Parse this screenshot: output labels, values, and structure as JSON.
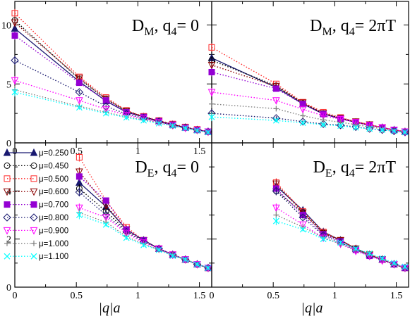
{
  "xlabel": "|q|a",
  "legend": [
    {
      "label": "μ=0.250",
      "color": "#191970",
      "marker": "triangle-up",
      "fill": true
    },
    {
      "label": "μ=0.450",
      "color": "#000000",
      "marker": "circle",
      "fill": false
    },
    {
      "label": "μ=0.500",
      "color": "#ff2a2a",
      "marker": "square",
      "fill": false
    },
    {
      "label": "μ=0.600",
      "color": "#8b0000",
      "marker": "triangle-down",
      "fill": false
    },
    {
      "label": "μ=0.700",
      "color": "#9400d3",
      "marker": "square",
      "fill": true
    },
    {
      "label": "μ=0.800",
      "color": "#191970",
      "marker": "diamond",
      "fill": false
    },
    {
      "label": "μ=0.900",
      "color": "#ff00ff",
      "marker": "triangle-down",
      "fill": false
    },
    {
      "label": "μ=1.000",
      "color": "#808080",
      "marker": "plus",
      "fill": false
    },
    {
      "label": "μ=1.100",
      "color": "#00ffff",
      "marker": "x",
      "fill": false
    }
  ],
  "chart_data": [
    {
      "type": "line",
      "title_main": "D",
      "title_sub": "M",
      "title_rest": ", q",
      "title_sub2": "4",
      "title_end": "= 0",
      "xlim": [
        0,
        1.6
      ],
      "ylim": [
        0,
        12
      ],
      "xticks": [
        "0",
        "0.5",
        "1",
        "1.5"
      ],
      "xtick_vals": [
        0,
        0.5,
        1,
        1.5
      ],
      "yticks": [
        "0",
        "5",
        "10"
      ],
      "ytick_vals": [
        0,
        5,
        10
      ],
      "x": [
        0,
        0.524,
        0.741,
        0.907,
        1.047,
        1.171,
        1.283,
        1.386,
        1.482,
        1.571
      ],
      "series": [
        {
          "values": [
            9.7,
            5.2,
            3.55,
            2.6,
            2.2,
            1.85,
            1.55,
            1.3,
            1.1,
            0.95
          ]
        },
        {
          "values": [
            10.4,
            5.4,
            3.7,
            2.7,
            2.2,
            1.85,
            1.55,
            1.3,
            1.1,
            0.95
          ]
        },
        {
          "values": [
            11.0,
            5.6,
            3.85,
            2.75,
            2.25,
            1.9,
            1.6,
            1.35,
            1.15,
            0.95
          ]
        },
        {
          "values": [
            10.2,
            5.5,
            3.75,
            2.7,
            2.2,
            1.85,
            1.55,
            1.3,
            1.1,
            0.95
          ]
        },
        {
          "values": [
            9.1,
            5.1,
            3.6,
            2.6,
            2.2,
            1.85,
            1.55,
            1.3,
            1.1,
            0.95
          ]
        },
        {
          "values": [
            7.0,
            4.3,
            3.1,
            2.45,
            2.1,
            1.8,
            1.5,
            1.3,
            1.1,
            0.95
          ]
        },
        {
          "values": [
            5.3,
            3.6,
            2.85,
            2.35,
            2.05,
            1.75,
            1.5,
            1.25,
            1.1,
            0.95
          ]
        },
        {
          "values": [
            4.5,
            3.1,
            2.6,
            2.2,
            1.95,
            1.7,
            1.45,
            1.25,
            1.05,
            0.9
          ]
        },
        {
          "values": [
            4.3,
            3.0,
            2.5,
            2.15,
            1.9,
            1.65,
            1.45,
            1.25,
            1.05,
            0.9
          ]
        }
      ]
    },
    {
      "type": "line",
      "title_main": "D",
      "title_sub": "M",
      "title_rest": ", q",
      "title_sub2": "4",
      "title_end": "= 2πT",
      "xlim": [
        0,
        1.6
      ],
      "ylim": [
        0,
        12
      ],
      "xticks": [],
      "xtick_vals": [
        0,
        0.5,
        1,
        1.5
      ],
      "yticks": [],
      "ytick_vals": [
        0,
        5,
        10
      ],
      "x": [
        0,
        0.524,
        0.741,
        0.907,
        1.047,
        1.171,
        1.283,
        1.386,
        1.482,
        1.571
      ],
      "series": [
        {
          "values": [
            7.2,
            4.7,
            3.3,
            2.45,
            2.05,
            1.75,
            1.5,
            1.3,
            1.1,
            0.95
          ]
        },
        {
          "values": [
            7.0,
            4.85,
            3.35,
            2.5,
            2.1,
            1.75,
            1.5,
            1.3,
            1.1,
            0.95
          ]
        },
        {
          "values": [
            8.1,
            5.0,
            3.45,
            2.6,
            2.15,
            1.8,
            1.55,
            1.3,
            1.1,
            0.95
          ]
        },
        {
          "values": [
            6.6,
            4.8,
            3.4,
            2.5,
            2.1,
            1.8,
            1.55,
            1.3,
            1.1,
            0.95
          ]
        },
        {
          "values": [
            6.0,
            4.6,
            3.3,
            2.45,
            2.05,
            1.75,
            1.5,
            1.3,
            1.1,
            0.95
          ]
        },
        {
          "values": [
            2.5,
            2.1,
            1.8,
            1.6,
            1.5,
            1.35,
            1.2,
            1.1,
            1.0,
            0.9
          ]
        },
        {
          "values": [
            4.3,
            3.6,
            2.85,
            2.3,
            2.0,
            1.75,
            1.5,
            1.3,
            1.1,
            0.95
          ]
        },
        {
          "values": [
            3.3,
            2.9,
            2.3,
            1.95,
            1.75,
            1.55,
            1.35,
            1.2,
            1.05,
            0.9
          ]
        },
        {
          "values": [
            2.2,
            1.9,
            1.7,
            1.55,
            1.45,
            1.3,
            1.2,
            1.1,
            1.0,
            0.9
          ]
        }
      ]
    },
    {
      "type": "line",
      "title_main": "D",
      "title_sub": "E",
      "title_rest": ", q",
      "title_sub2": "4",
      "title_end": "= 0",
      "xlim": [
        0,
        1.6
      ],
      "ylim": [
        0,
        6
      ],
      "xticks": [
        "0",
        "0.5",
        "1",
        "1.5"
      ],
      "xtick_vals": [
        0,
        0.5,
        1,
        1.5
      ],
      "yticks": [
        "0",
        "2",
        "4"
      ],
      "ytick_vals": [
        0,
        2,
        4
      ],
      "x": [
        0.524,
        0.741,
        0.907,
        1.047,
        1.171,
        1.283,
        1.386,
        1.482,
        1.571
      ],
      "series": [
        {
          "values": [
            4.35,
            3.35,
            2.4,
            1.95,
            1.6,
            1.35,
            1.15,
            0.95,
            0.8
          ]
        },
        {
          "values": [
            4.1,
            3.15,
            2.35,
            1.95,
            1.6,
            1.35,
            1.15,
            0.95,
            0.8
          ]
        },
        {
          "values": [
            5.4,
            3.6,
            2.5,
            1.95,
            1.6,
            1.35,
            1.15,
            0.95,
            0.8
          ]
        },
        {
          "values": [
            4.8,
            3.4,
            2.4,
            1.95,
            1.6,
            1.35,
            1.15,
            0.95,
            0.8
          ]
        },
        {
          "values": [
            4.6,
            3.6,
            2.4,
            1.95,
            1.6,
            1.35,
            1.15,
            0.95,
            0.8
          ]
        },
        {
          "values": [
            3.95,
            3.0,
            2.3,
            1.9,
            1.6,
            1.35,
            1.15,
            0.95,
            0.8
          ]
        },
        {
          "values": [
            3.3,
            2.9,
            2.25,
            1.85,
            1.6,
            1.35,
            1.15,
            0.95,
            0.8
          ]
        },
        {
          "values": [
            3.1,
            2.7,
            2.1,
            1.8,
            1.55,
            1.35,
            1.15,
            0.95,
            0.8
          ]
        },
        {
          "values": [
            3.0,
            2.6,
            2.05,
            1.75,
            1.55,
            1.3,
            1.15,
            0.95,
            0.8
          ]
        }
      ]
    },
    {
      "type": "line",
      "title_main": "D",
      "title_sub": "E",
      "title_rest": ", q",
      "title_sub2": "4",
      "title_end": "= 2πT",
      "xlim": [
        0,
        1.6
      ],
      "ylim": [
        0,
        6
      ],
      "xticks": [
        "0",
        "0.5",
        "1",
        "1.5"
      ],
      "xtick_vals": [
        0,
        0.5,
        1,
        1.5
      ],
      "yticks": [],
      "ytick_vals": [
        0,
        2,
        4
      ],
      "x": [
        0.524,
        0.741,
        0.907,
        1.047,
        1.171,
        1.283,
        1.386,
        1.482,
        1.571
      ],
      "series": [
        {
          "values": [
            4.2,
            3.2,
            2.3,
            1.95,
            1.6,
            1.35,
            1.15,
            0.95,
            0.8
          ]
        },
        {
          "values": [
            4.0,
            3.1,
            2.25,
            1.95,
            1.6,
            1.35,
            1.15,
            0.95,
            0.8
          ]
        },
        {
          "values": [
            4.35,
            3.15,
            2.3,
            1.95,
            1.6,
            1.35,
            1.15,
            0.95,
            0.8
          ]
        },
        {
          "values": [
            4.3,
            3.1,
            2.25,
            1.95,
            1.6,
            1.35,
            1.15,
            0.95,
            0.8
          ]
        },
        {
          "values": [
            4.1,
            3.0,
            2.2,
            1.9,
            1.55,
            1.3,
            1.15,
            0.95,
            0.8
          ]
        },
        {
          "values": [
            4.0,
            2.9,
            2.15,
            1.85,
            1.55,
            1.3,
            1.15,
            0.95,
            0.8
          ]
        },
        {
          "values": [
            3.3,
            2.6,
            2.05,
            1.8,
            1.5,
            1.3,
            1.1,
            0.95,
            0.8
          ]
        },
        {
          "values": [
            3.0,
            2.5,
            2.05,
            1.8,
            1.55,
            1.35,
            1.15,
            0.95,
            0.8
          ]
        },
        {
          "values": [
            2.75,
            2.4,
            2.0,
            1.85,
            1.6,
            1.4,
            1.2,
            1.0,
            0.85
          ]
        }
      ]
    }
  ]
}
